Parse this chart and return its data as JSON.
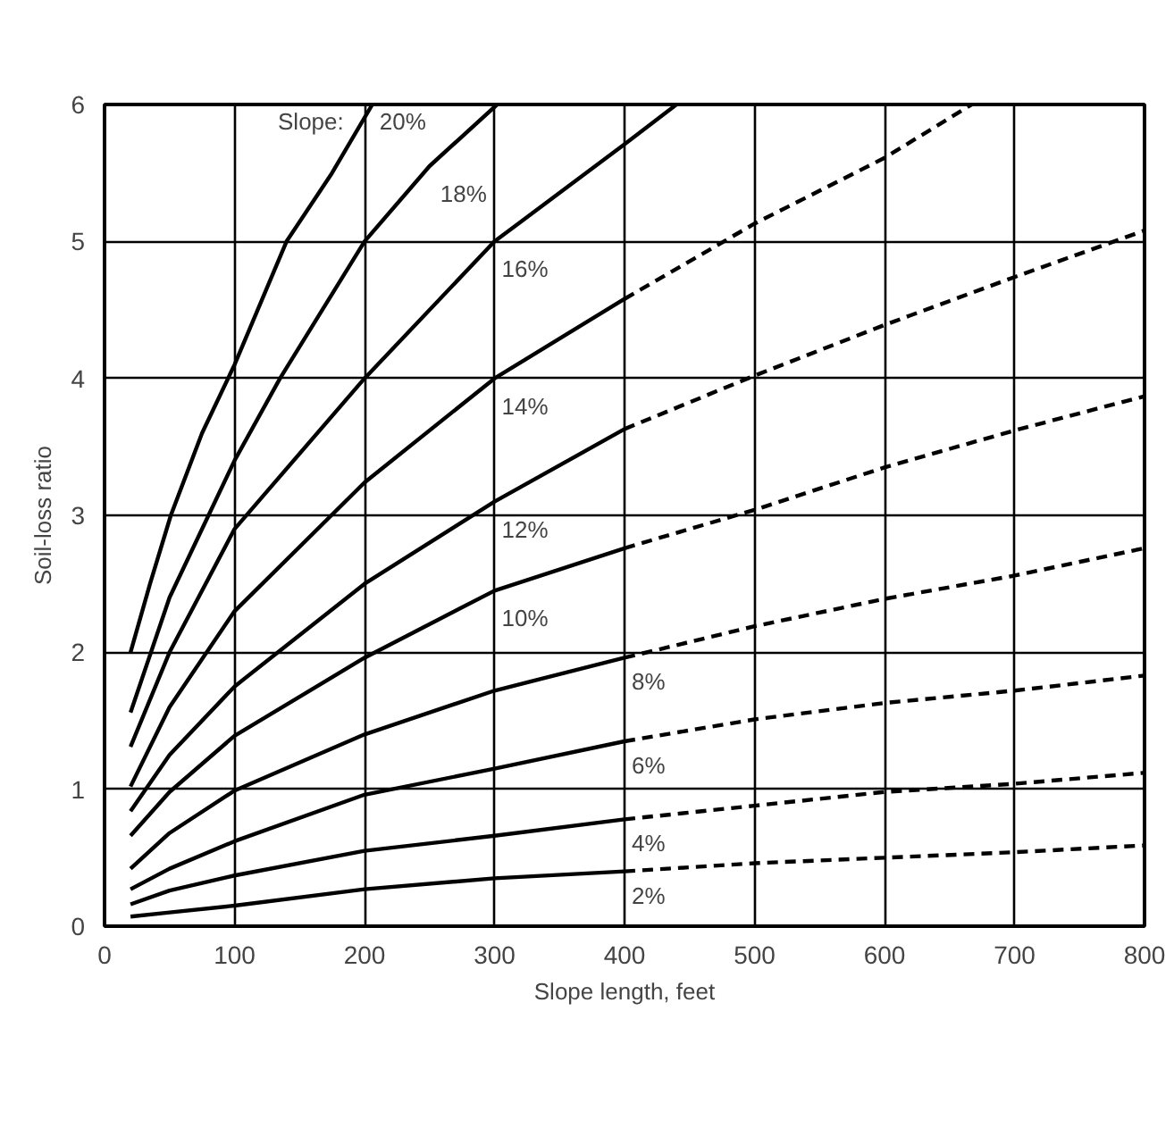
{
  "chart_data": {
    "type": "line",
    "xlabel": "Slope length, feet",
    "ylabel": "Soil-loss ratio",
    "legend_title": "Slope:",
    "xlim": [
      0,
      800
    ],
    "ylim": [
      0,
      6
    ],
    "xticks": [
      0,
      100,
      200,
      300,
      400,
      500,
      600,
      700,
      800
    ],
    "yticks": [
      0,
      1,
      2,
      3,
      4,
      5,
      6
    ],
    "grid": true,
    "series": [
      {
        "name": "2%",
        "color": "#000000",
        "line_style": "solid",
        "x": [
          20,
          50,
          100,
          200,
          300,
          400
        ],
        "values": [
          0.07,
          0.1,
          0.15,
          0.27,
          0.35,
          0.4
        ]
      },
      {
        "color": "#000000",
        "line_style": "dashed",
        "x": [
          400,
          500,
          600,
          700,
          800
        ],
        "values": [
          0.4,
          0.46,
          0.5,
          0.54,
          0.59
        ]
      },
      {
        "name": "4%",
        "color": "#000000",
        "line_style": "solid",
        "x": [
          20,
          50,
          100,
          200,
          300,
          400
        ],
        "values": [
          0.16,
          0.26,
          0.37,
          0.55,
          0.66,
          0.78
        ]
      },
      {
        "color": "#000000",
        "line_style": "dashed",
        "x": [
          400,
          500,
          600,
          700,
          800
        ],
        "values": [
          0.78,
          0.88,
          0.98,
          1.04,
          1.12
        ]
      },
      {
        "name": "6%",
        "color": "#000000",
        "line_style": "solid",
        "x": [
          20,
          50,
          100,
          200,
          300,
          400
        ],
        "values": [
          0.27,
          0.42,
          0.62,
          0.96,
          1.15,
          1.35
        ]
      },
      {
        "color": "#000000",
        "line_style": "dashed",
        "x": [
          400,
          500,
          600,
          700,
          800
        ],
        "values": [
          1.35,
          1.51,
          1.63,
          1.72,
          1.83
        ]
      },
      {
        "name": "8%",
        "color": "#000000",
        "line_style": "solid",
        "x": [
          20,
          50,
          100,
          200,
          300,
          400
        ],
        "values": [
          0.42,
          0.68,
          0.99,
          1.4,
          1.72,
          1.96
        ]
      },
      {
        "color": "#000000",
        "line_style": "dashed",
        "x": [
          400,
          500,
          600,
          700,
          800
        ],
        "values": [
          1.96,
          2.19,
          2.39,
          2.56,
          2.76
        ]
      },
      {
        "name": "10%",
        "color": "#000000",
        "line_style": "solid",
        "x": [
          20,
          50,
          100,
          200,
          300,
          400
        ],
        "values": [
          0.66,
          0.98,
          1.39,
          1.96,
          2.45,
          2.76
        ]
      },
      {
        "color": "#000000",
        "line_style": "dashed",
        "x": [
          400,
          500,
          600,
          700,
          800
        ],
        "values": [
          2.76,
          3.04,
          3.35,
          3.62,
          3.87
        ]
      },
      {
        "name": "12%",
        "color": "#000000",
        "line_style": "solid",
        "x": [
          20,
          50,
          100,
          200,
          300,
          400
        ],
        "values": [
          0.84,
          1.25,
          1.75,
          2.5,
          3.1,
          3.63
        ]
      },
      {
        "color": "#000000",
        "line_style": "dashed",
        "x": [
          400,
          500,
          600,
          700,
          800
        ],
        "values": [
          3.63,
          4.02,
          4.39,
          4.74,
          5.08
        ]
      },
      {
        "name": "14%",
        "color": "#000000",
        "line_style": "solid",
        "x": [
          20,
          50,
          100,
          200,
          300,
          400
        ],
        "values": [
          1.02,
          1.6,
          2.3,
          3.24,
          4.0,
          4.58
        ]
      },
      {
        "color": "#000000",
        "line_style": "dashed",
        "x": [
          400,
          500,
          600,
          667
        ],
        "values": [
          4.58,
          5.13,
          5.61,
          6.0
        ]
      },
      {
        "name": "16%",
        "color": "#000000",
        "line_style": "solid",
        "x": [
          20,
          50,
          100,
          200,
          300,
          400,
          440
        ],
        "values": [
          1.31,
          2.0,
          2.9,
          4.0,
          5.0,
          5.71,
          6.0
        ]
      },
      {
        "name": "18%",
        "color": "#000000",
        "line_style": "solid",
        "x": [
          20,
          50,
          80,
          100,
          135,
          200,
          250,
          302
        ],
        "values": [
          1.56,
          2.4,
          3.0,
          3.4,
          4.0,
          5.0,
          5.55,
          6.0
        ]
      },
      {
        "name": "20%",
        "color": "#000000",
        "line_style": "solid",
        "x": [
          20,
          35,
          51,
          75,
          100,
          140,
          175,
          206
        ],
        "values": [
          2.0,
          2.5,
          3.0,
          3.6,
          4.1,
          5.0,
          5.5,
          6.0
        ]
      }
    ]
  }
}
